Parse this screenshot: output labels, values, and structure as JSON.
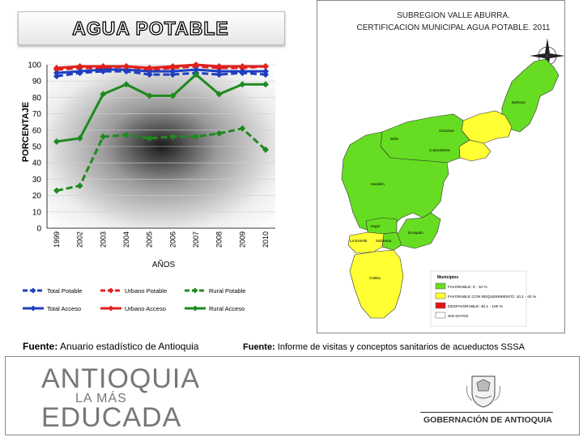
{
  "slide": {
    "title": "AGUA POTABLE",
    "source_left_label": "Fuente:",
    "source_left_text": "Anuario estadístico de Antioquia",
    "source_right_label": "Fuente:",
    "source_right_text": "Informe de visitas y conceptos sanitarios de acueductos SSSA"
  },
  "chart_data": {
    "type": "line",
    "ylabel": "PORCENTAJE",
    "xlabel": "AÑOS",
    "ylim": [
      0,
      100
    ],
    "yticks": [
      "0",
      "10",
      "20",
      "30",
      "40",
      "50",
      "60",
      "70",
      "80",
      "90",
      "100"
    ],
    "categories": [
      "1999",
      "2002",
      "2003",
      "2004",
      "2005",
      "2006",
      "2007",
      "2008",
      "2009",
      "2010"
    ],
    "series": [
      {
        "name": "Total Potable",
        "color": "#1f3fbf",
        "dash": true,
        "values": [
          93,
          95,
          96,
          96,
          94,
          94,
          95,
          94,
          95,
          94
        ]
      },
      {
        "name": "Urbano Potable",
        "color": "#e0201c",
        "dash": true,
        "values": [
          97,
          98,
          98,
          99,
          97,
          98,
          99,
          98,
          98,
          99
        ]
      },
      {
        "name": "Rural Potable",
        "color": "#1e8a1e",
        "dash": true,
        "values": [
          23,
          26,
          56,
          57,
          55,
          56,
          56,
          58,
          61,
          48
        ]
      },
      {
        "name": "Total Acceso",
        "color": "#1f3fbf",
        "dash": false,
        "values": [
          95,
          96,
          97,
          97,
          96,
          96,
          97,
          96,
          96,
          96
        ]
      },
      {
        "name": "Urbano Acceso",
        "color": "#e0201c",
        "dash": false,
        "values": [
          98,
          99,
          99,
          99,
          98,
          99,
          100,
          99,
          99,
          99
        ]
      },
      {
        "name": "Rural Acceso",
        "color": "#1e8a1e",
        "dash": false,
        "values": [
          53,
          55,
          82,
          88,
          81,
          81,
          94,
          82,
          88,
          88
        ]
      }
    ],
    "legend_position": "bottom"
  },
  "map": {
    "title_line1": "SUBREGION VALLE ABURRA.",
    "title_line2": "CERTIFICACION MUNICIPAL AGUA POTABLE.  2011",
    "legend_title": "Municipios",
    "legend_items": [
      {
        "label": "FAVORABLE: 0 - 10 %",
        "color": "#66dd22"
      },
      {
        "label": "FAVORABLE CON REQUERIMIENTO: 10.1 - 40 %",
        "color": "#ffff33"
      },
      {
        "label": "DESFAVORABLE: 40.1 - 100 %",
        "color": "#ee1111"
      },
      {
        "label": "SIN DATOS",
        "color": "#ffffff"
      }
    ],
    "municipios": [
      "Barbosa",
      "Girardota",
      "Bello",
      "Copacabana",
      "Medellín",
      "Itagüí",
      "Envigado",
      "La Estrella",
      "Sabaneta",
      "Caldas"
    ]
  },
  "footer": {
    "brand_line1": "ANTIOQUIA",
    "brand_line2": "LA MÁS",
    "brand_line3": "EDUCADA",
    "gob": "GOBERNACIÓN DE ANTIOQUIA"
  }
}
